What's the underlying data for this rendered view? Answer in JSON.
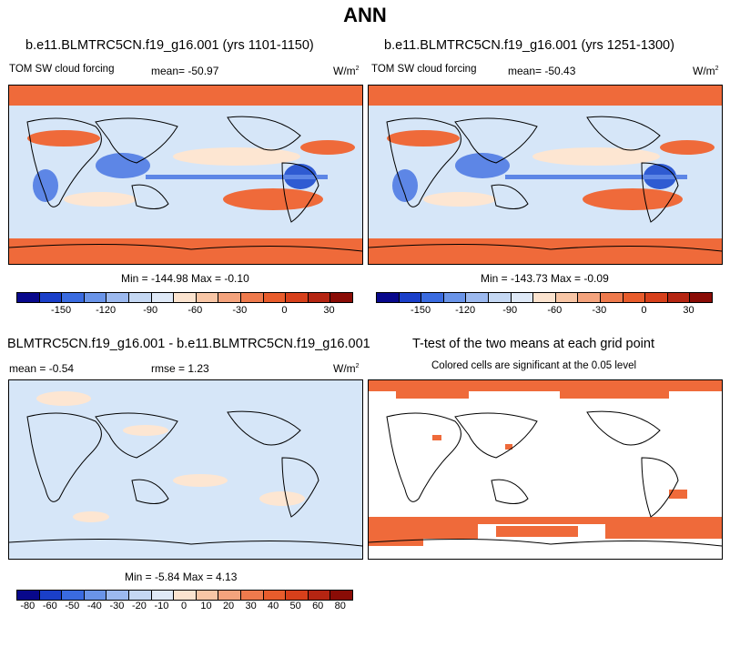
{
  "main_title": "ANN",
  "panels": [
    {
      "title": "b.e11.BLMTRC5CN.f19_g16.001 (yrs 1101-1150)",
      "variable": "TOM SW cloud forcing",
      "mean_label": "mean= -50.97",
      "units_base": "W/m",
      "units_exp": "2",
      "minmax": "Min = -144.98 Max =  -0.10",
      "colorbar_ticks": [
        "-150",
        "-120",
        "-90",
        "-60",
        "-30",
        "0",
        "30"
      ]
    },
    {
      "title": "b.e11.BLMTRC5CN.f19_g16.001 (yrs 1251-1300)",
      "variable": "TOM SW cloud forcing",
      "mean_label": "mean= -50.43",
      "units_base": "W/m",
      "units_exp": "2",
      "minmax": "Min = -143.73 Max =  -0.09",
      "colorbar_ticks": [
        "-150",
        "-120",
        "-90",
        "-60",
        "-30",
        "0",
        "30"
      ]
    },
    {
      "title": "BLMTRC5CN.f19_g16.001 - b.e11.BLMTRC5CN.f19_g16.001",
      "mean_label": "mean =  -0.54",
      "rmse_label": "rmse =   1.23",
      "units_base": "W/m",
      "units_exp": "2",
      "minmax": "Min =  -5.84 Max =   4.13",
      "colorbar_ticks": [
        "-80",
        "-60",
        "-50",
        "-40",
        "-30",
        "-20",
        "-10",
        "0",
        "10",
        "20",
        "30",
        "40",
        "50",
        "60",
        "80"
      ]
    },
    {
      "title": "T-test of the two means at each grid point",
      "subtitle": "Colored cells are significant at the 0.05 level"
    }
  ],
  "colors": {
    "abs_scale": [
      "#08088c",
      "#1a3fc9",
      "#3a6be0",
      "#6a94e8",
      "#9cb9ef",
      "#c5d8f3",
      "#dfe9f7",
      "#fbe3cf",
      "#f8c6a6",
      "#f4a37d",
      "#ee7a4d",
      "#e85c2c",
      "#d7401b",
      "#b52512",
      "#8a0c06"
    ],
    "diff_scale": [
      "#08088c",
      "#1a3fc9",
      "#3a6be0",
      "#6a94e8",
      "#9cb9ef",
      "#c5d8f3",
      "#dfe9f7",
      "#fbe3cf",
      "#f8c6a6",
      "#f4a37d",
      "#ee7a4d",
      "#e85c2c",
      "#d7401b",
      "#b52512",
      "#8a0c06"
    ],
    "orange": "#ef6a3a",
    "light_blue": "#d6e6f8",
    "pale_orange": "#fde6d2",
    "mid_blue": "#5d86e6",
    "dark_blue": "#2f5bd2"
  }
}
